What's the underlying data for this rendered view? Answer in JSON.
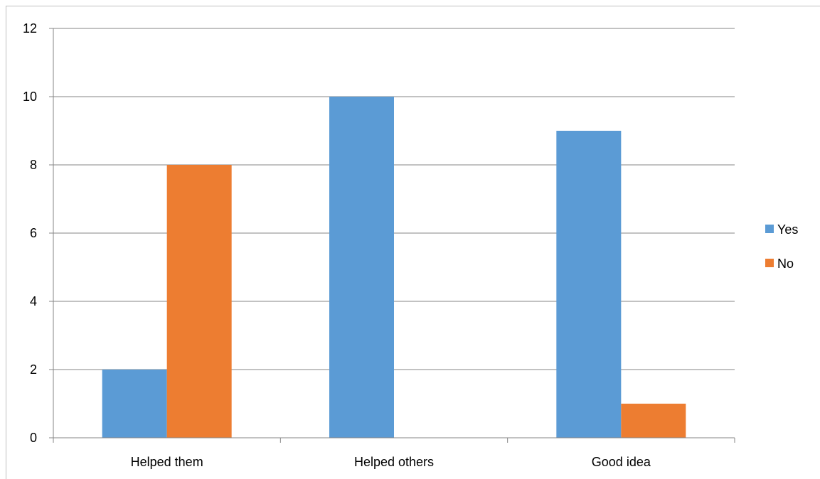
{
  "chart_data": {
    "type": "bar",
    "categories": [
      "Helped them",
      "Helped others",
      "Good idea"
    ],
    "series": [
      {
        "name": "Yes",
        "values": [
          2,
          10,
          9
        ],
        "color": "#5B9BD5"
      },
      {
        "name": "No",
        "values": [
          8,
          0,
          1
        ],
        "color": "#ED7D31"
      }
    ],
    "y_ticks": [
      "0",
      "2",
      "4",
      "6",
      "8",
      "10",
      "12"
    ],
    "ylim": [
      0,
      12
    ],
    "grid": true,
    "legend_position": "right",
    "title": "",
    "xlabel": "",
    "ylabel": ""
  }
}
